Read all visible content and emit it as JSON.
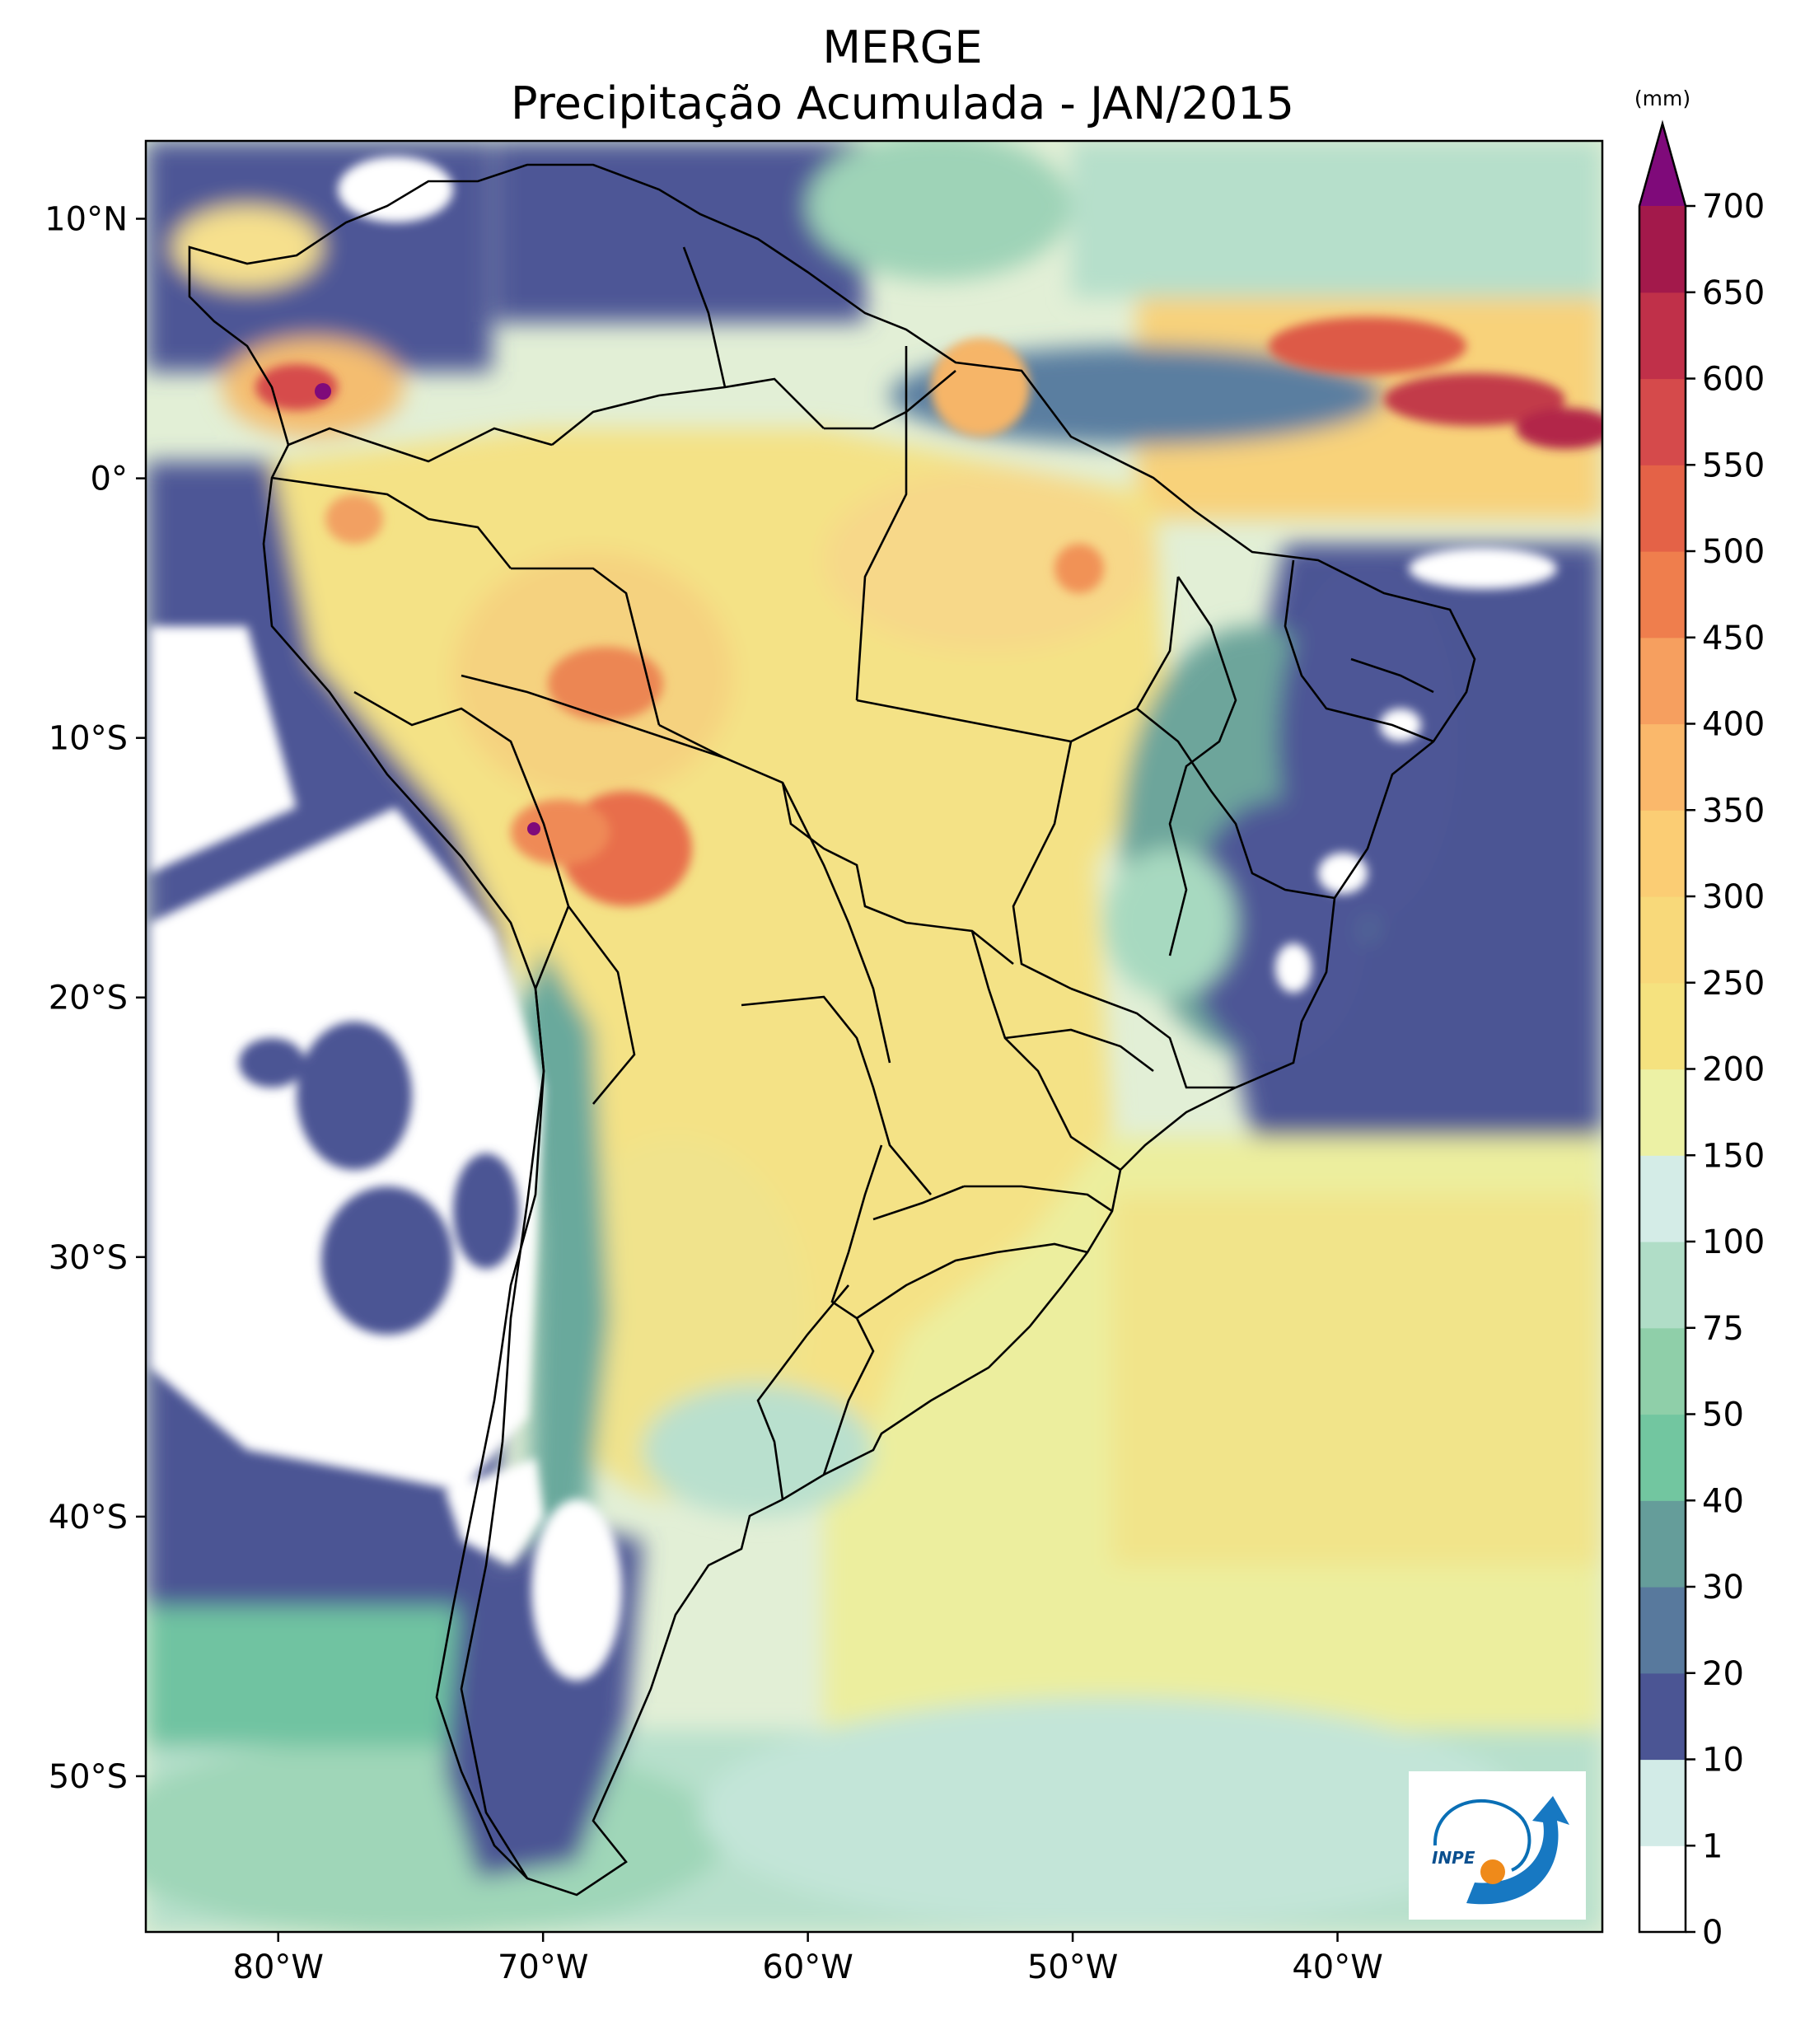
{
  "title": {
    "line1": "MERGE",
    "line2": "Precipitação Acumulada - JAN/2015"
  },
  "map": {
    "region": "South America",
    "lon_range": [
      -85,
      -30
    ],
    "lat_range": [
      -56,
      13
    ],
    "lon_ticks": [
      {
        "value": -80,
        "label": "80°W"
      },
      {
        "value": -70,
        "label": "70°W"
      },
      {
        "value": -60,
        "label": "60°W"
      },
      {
        "value": -50,
        "label": "50°W"
      },
      {
        "value": -40,
        "label": "40°W"
      }
    ],
    "lat_ticks": [
      {
        "value": 10,
        "label": "10°N"
      },
      {
        "value": 0,
        "label": "0°"
      },
      {
        "value": -10,
        "label": "10°S"
      },
      {
        "value": -20,
        "label": "20°S"
      },
      {
        "value": -30,
        "label": "30°S"
      },
      {
        "value": -40,
        "label": "40°S"
      },
      {
        "value": -50,
        "label": "50°S"
      }
    ]
  },
  "colorbar": {
    "unit": "(mm)",
    "levels": [
      "0",
      "1",
      "10",
      "20",
      "30",
      "40",
      "50",
      "75",
      "100",
      "150",
      "200",
      "250",
      "300",
      "350",
      "400",
      "450",
      "500",
      "550",
      "600",
      "650",
      "700"
    ],
    "colors": [
      "#ffffff",
      "#d2ebe7",
      "#4b5594",
      "#58799d",
      "#659d9a",
      "#72c6a0",
      "#8fcfa9",
      "#b0ddc7",
      "#d4ece7",
      "#ecf1a5",
      "#f5e27f",
      "#f8d97a",
      "#fbcd74",
      "#fab86b",
      "#f69f5f",
      "#ef7e4d",
      "#e46247",
      "#d54a4b",
      "#c03049",
      "#a3194b"
    ],
    "extend_color": "#7f0a7a"
  },
  "logo": {
    "text": "INPE"
  }
}
